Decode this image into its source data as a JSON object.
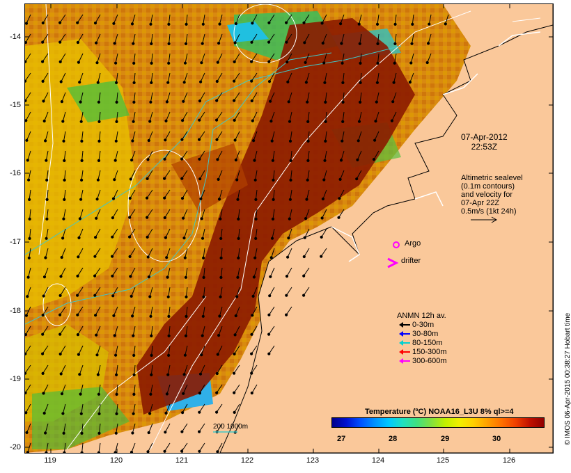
{
  "map": {
    "y_ticks": [
      "-14",
      "-15",
      "-16",
      "-17",
      "-18",
      "-19",
      "-20"
    ],
    "x_ticks": [
      "119",
      "120",
      "121",
      "122",
      "123",
      "124",
      "125",
      "126"
    ],
    "date_line1": "07-Apr-2012",
    "date_line2": "22:53Z",
    "altimetric_lines": [
      "Altimetric sealevel",
      "(0.1m contours)",
      "and velocity for",
      "07-Apr 22Z",
      "0.5m/s (1kt 24h)"
    ],
    "argo_label": "Argo",
    "drifter_label": "drifter",
    "legend_title": "ANMN 12h av.",
    "legend_items": [
      {
        "label": "0-30m",
        "color": "#000000"
      },
      {
        "label": "30-80m",
        "color": "#0000ff"
      },
      {
        "label": "80-150m",
        "color": "#00d0d0"
      },
      {
        "label": "150-300m",
        "color": "#ff0000"
      },
      {
        "label": "300-600m",
        "color": "#ff00ff"
      }
    ],
    "colorbar_title": "Temperature (ºC) NOAA16_L3U 8% ql>=4",
    "colorbar_ticks": [
      "27",
      "28",
      "29",
      "30"
    ],
    "depth_label": "200  1000m",
    "credit": "© IMOS 06-Apr-2015 00:38:27 Hobart time",
    "colors": {
      "land": "#fac89a",
      "warm": "#8b1a00",
      "mid": "#d4780a",
      "cool": "#e8c000",
      "isobath": "#40c8c8"
    }
  }
}
